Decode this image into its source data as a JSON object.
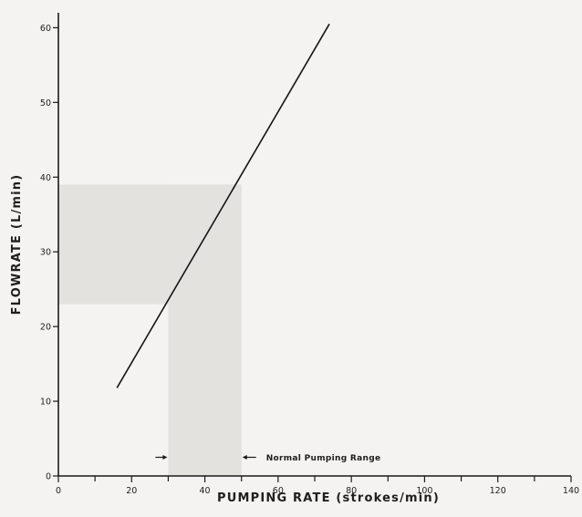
{
  "chart_data": {
    "type": "line",
    "title": "",
    "xlabel": "PUMPING RATE (strokes/min)",
    "ylabel": "FLOWRATE (L/min)",
    "xlim": [
      0,
      140
    ],
    "ylim": [
      0,
      62
    ],
    "x_ticks": [
      0,
      20,
      40,
      60,
      80,
      100,
      120,
      140
    ],
    "x_tick_labels": [
      "0",
      "20",
      "40",
      "60",
      "80",
      "100",
      "120",
      "140"
    ],
    "x_minor_step": 10,
    "y_ticks": [
      0,
      10,
      20,
      30,
      40,
      50,
      60
    ],
    "y_tick_labels": [
      "0",
      "10",
      "20",
      "30",
      "40",
      "50",
      "60"
    ],
    "grid": false,
    "series": [
      {
        "x": [
          16,
          74
        ],
        "y": [
          11.8,
          60.5
        ]
      }
    ],
    "shaded_regions": [
      {
        "name": "normal-pumping-x-band",
        "x": [
          30,
          50
        ],
        "y": [
          0,
          39
        ]
      },
      {
        "name": "normal-flow-y-band",
        "x": [
          0,
          50
        ],
        "y": [
          23,
          39
        ]
      }
    ],
    "annotation": {
      "text": "Normal Pumping Range",
      "at": [
        50,
        2.5
      ],
      "bracket_x": [
        30,
        50
      ]
    },
    "colors": {
      "line": "#151515",
      "axis": "#1a1a1a",
      "shade": "#e3e2df",
      "background": "#f4f3f1"
    }
  }
}
